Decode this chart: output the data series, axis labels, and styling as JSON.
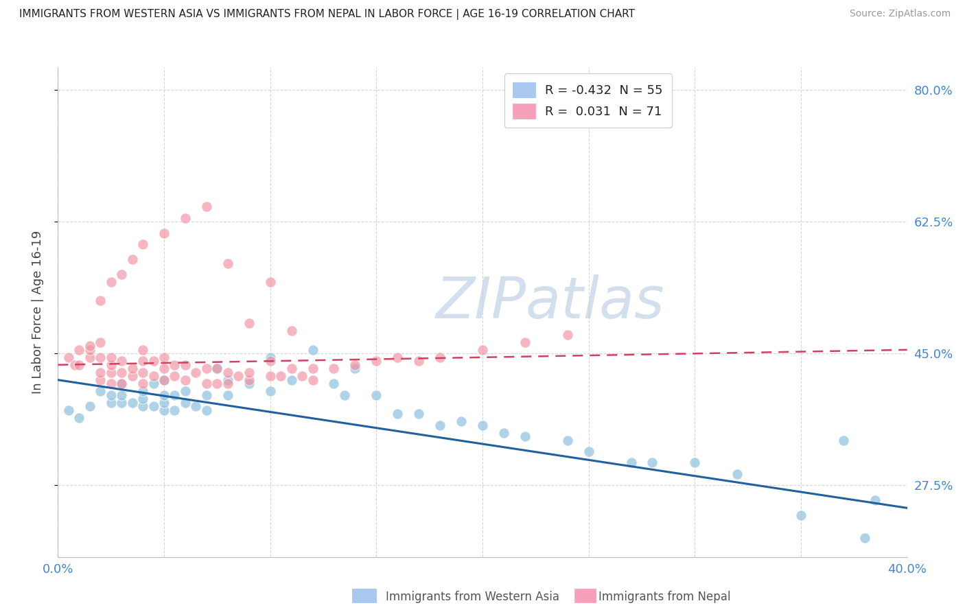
{
  "title": "IMMIGRANTS FROM WESTERN ASIA VS IMMIGRANTS FROM NEPAL IN LABOR FORCE | AGE 16-19 CORRELATION CHART",
  "source": "Source: ZipAtlas.com",
  "ylabel": "In Labor Force | Age 16-19",
  "xlim": [
    0.0,
    0.4
  ],
  "ylim": [
    0.18,
    0.83
  ],
  "yticks": [
    0.275,
    0.45,
    0.625,
    0.8
  ],
  "ytick_labels": [
    "27.5%",
    "45.0%",
    "62.5%",
    "80.0%"
  ],
  "xticks": [
    0.0,
    0.05,
    0.1,
    0.15,
    0.2,
    0.25,
    0.3,
    0.35,
    0.4
  ],
  "legend_r1": "R = -0.432  N = 55",
  "legend_r2": "R =  0.031  N = 71",
  "legend_color1": "#a8c8f0",
  "legend_color2": "#f5a0b8",
  "blue_scatter_x": [
    0.005,
    0.01,
    0.015,
    0.02,
    0.025,
    0.025,
    0.03,
    0.03,
    0.03,
    0.035,
    0.04,
    0.04,
    0.04,
    0.045,
    0.045,
    0.05,
    0.05,
    0.05,
    0.05,
    0.055,
    0.055,
    0.06,
    0.06,
    0.065,
    0.07,
    0.07,
    0.075,
    0.08,
    0.08,
    0.09,
    0.1,
    0.1,
    0.11,
    0.12,
    0.13,
    0.135,
    0.14,
    0.15,
    0.16,
    0.17,
    0.18,
    0.19,
    0.2,
    0.21,
    0.22,
    0.24,
    0.25,
    0.27,
    0.28,
    0.3,
    0.32,
    0.35,
    0.37,
    0.385,
    0.38
  ],
  "blue_scatter_y": [
    0.375,
    0.365,
    0.38,
    0.4,
    0.385,
    0.395,
    0.385,
    0.395,
    0.41,
    0.385,
    0.38,
    0.39,
    0.4,
    0.38,
    0.41,
    0.375,
    0.385,
    0.395,
    0.415,
    0.375,
    0.395,
    0.385,
    0.4,
    0.38,
    0.375,
    0.395,
    0.43,
    0.395,
    0.415,
    0.41,
    0.4,
    0.445,
    0.415,
    0.455,
    0.41,
    0.395,
    0.43,
    0.395,
    0.37,
    0.37,
    0.355,
    0.36,
    0.355,
    0.345,
    0.34,
    0.335,
    0.32,
    0.305,
    0.305,
    0.305,
    0.29,
    0.235,
    0.335,
    0.255,
    0.205
  ],
  "pink_scatter_x": [
    0.005,
    0.008,
    0.01,
    0.01,
    0.015,
    0.015,
    0.015,
    0.02,
    0.02,
    0.02,
    0.02,
    0.025,
    0.025,
    0.025,
    0.025,
    0.03,
    0.03,
    0.03,
    0.035,
    0.035,
    0.04,
    0.04,
    0.04,
    0.04,
    0.045,
    0.045,
    0.05,
    0.05,
    0.05,
    0.055,
    0.055,
    0.06,
    0.06,
    0.065,
    0.07,
    0.07,
    0.075,
    0.075,
    0.08,
    0.08,
    0.085,
    0.09,
    0.09,
    0.1,
    0.1,
    0.105,
    0.11,
    0.115,
    0.12,
    0.13,
    0.14,
    0.15,
    0.16,
    0.17,
    0.18,
    0.2,
    0.22,
    0.24,
    0.02,
    0.025,
    0.03,
    0.035,
    0.04,
    0.05,
    0.06,
    0.07,
    0.08,
    0.09,
    0.1,
    0.11,
    0.12
  ],
  "pink_scatter_y": [
    0.445,
    0.435,
    0.435,
    0.455,
    0.445,
    0.455,
    0.46,
    0.415,
    0.425,
    0.445,
    0.465,
    0.41,
    0.425,
    0.435,
    0.445,
    0.41,
    0.425,
    0.44,
    0.42,
    0.43,
    0.41,
    0.425,
    0.44,
    0.455,
    0.42,
    0.44,
    0.415,
    0.43,
    0.445,
    0.42,
    0.435,
    0.415,
    0.435,
    0.425,
    0.41,
    0.43,
    0.41,
    0.43,
    0.41,
    0.425,
    0.42,
    0.415,
    0.425,
    0.42,
    0.44,
    0.42,
    0.43,
    0.42,
    0.43,
    0.43,
    0.435,
    0.44,
    0.445,
    0.44,
    0.445,
    0.455,
    0.465,
    0.475,
    0.52,
    0.545,
    0.555,
    0.575,
    0.595,
    0.61,
    0.63,
    0.645,
    0.57,
    0.49,
    0.545,
    0.48,
    0.415
  ],
  "blue_line_x": [
    0.0,
    0.4
  ],
  "blue_line_y": [
    0.415,
    0.245
  ],
  "pink_line_x": [
    0.0,
    0.4
  ],
  "pink_line_y": [
    0.435,
    0.455
  ],
  "blue_dot_color": "#94c4e0",
  "pink_dot_color": "#f090a0",
  "blue_line_color": "#2060a0",
  "pink_line_color": "#d04060",
  "watermark_text": "ZIPatlas",
  "watermark_color": "#c8d8e8",
  "background_color": "#ffffff",
  "grid_color": "#cccccc",
  "bottom_legend_label1": "Immigrants from Western Asia",
  "bottom_legend_label2": "Immigrants from Nepal",
  "bottom_legend_color1": "#a8c8f0",
  "bottom_legend_color2": "#f5a0b8"
}
